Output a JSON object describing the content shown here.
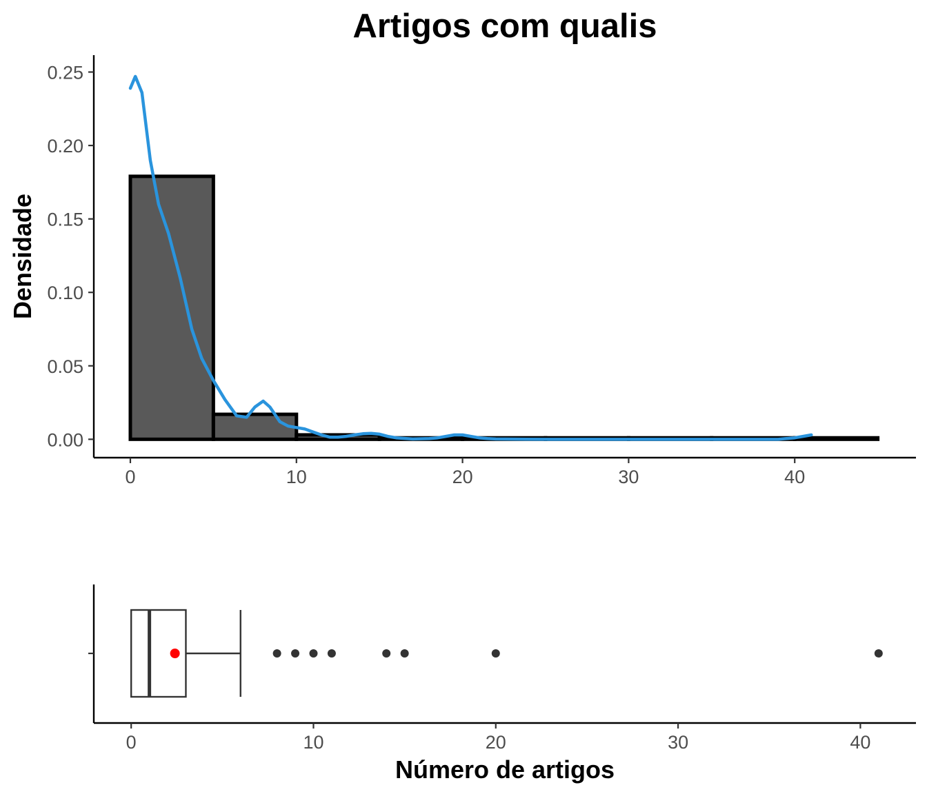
{
  "chart_data": [
    {
      "type": "histogram",
      "title": "Artigos com qualis",
      "xlabel": "",
      "ylabel": "Densidade",
      "xlim": [
        -2.2,
        47.3
      ],
      "ylim": [
        -0.0125,
        0.2615
      ],
      "xticks": [
        0,
        10,
        20,
        30,
        40
      ],
      "xtick_labels": [
        "0",
        "10",
        "20",
        "30",
        "40"
      ],
      "yticks": [
        0,
        0.05,
        0.1,
        0.15,
        0.2,
        0.25
      ],
      "ytick_labels": [
        "0.00",
        "0.05",
        "0.10",
        "0.15",
        "0.20",
        "0.25"
      ],
      "bins": [
        {
          "x0": 0,
          "x1": 5,
          "density": 0.179
        },
        {
          "x0": 5,
          "x1": 10,
          "density": 0.017
        },
        {
          "x0": 10,
          "x1": 15,
          "density": 0.003
        },
        {
          "x0": 15,
          "x1": 20,
          "density": 0.001
        },
        {
          "x0": 20,
          "x1": 25,
          "density": 0.001
        },
        {
          "x0": 25,
          "x1": 30,
          "density": 0.001
        },
        {
          "x0": 30,
          "x1": 35,
          "density": 0.001
        },
        {
          "x0": 35,
          "x1": 40,
          "density": 0.001
        },
        {
          "x0": 40,
          "x1": 45,
          "density": 0.001
        }
      ],
      "density_curve": {
        "x": [
          0,
          0.3,
          0.7,
          1.2,
          1.7,
          2.3,
          3,
          3.7,
          4.3,
          5,
          5.7,
          6.4,
          7,
          7.5,
          8,
          8.4,
          9,
          9.5,
          10,
          10.5,
          11,
          11.5,
          12,
          12.5,
          13,
          13.5,
          14,
          14.5,
          15,
          15.5,
          16,
          17,
          18,
          18.5,
          19,
          19.5,
          20,
          20.5,
          21,
          21.5,
          22,
          25,
          30,
          35,
          38,
          39,
          39.5,
          40,
          40.5,
          41
        ],
        "y": [
          0.239,
          0.247,
          0.236,
          0.19,
          0.16,
          0.14,
          0.11,
          0.075,
          0.055,
          0.04,
          0.027,
          0.016,
          0.015,
          0.022,
          0.026,
          0.022,
          0.012,
          0.009,
          0.008,
          0.007,
          0.005,
          0.003,
          0.0015,
          0.0015,
          0.002,
          0.003,
          0.0038,
          0.004,
          0.0035,
          0.002,
          0.001,
          0.0002,
          0.0005,
          0.001,
          0.002,
          0.003,
          0.003,
          0.002,
          0.001,
          0.0005,
          0.0002,
          0,
          0,
          0,
          0,
          0,
          0.0005,
          0.001,
          0.002,
          0.003
        ]
      },
      "colors": {
        "bar_fill": "#595959",
        "bar_edge": "#000000",
        "curve": "#2a94dd"
      }
    },
    {
      "type": "boxplot",
      "xlabel": "Número de artigos",
      "xlim": [
        -2.05,
        43.05
      ],
      "xticks": [
        0,
        10,
        20,
        30,
        40
      ],
      "xtick_labels": [
        "0",
        "10",
        "20",
        "30",
        "40"
      ],
      "box": {
        "min": 0,
        "q1": 0,
        "median": 1,
        "q3": 3,
        "whisker_high": 6,
        "mean": 2.4
      },
      "outliers": [
        8,
        9,
        10,
        11,
        14,
        15,
        20,
        41
      ],
      "colors": {
        "box_edge": "#333333",
        "outlier": "#333333",
        "mean_point": "#ff0000"
      }
    }
  ]
}
